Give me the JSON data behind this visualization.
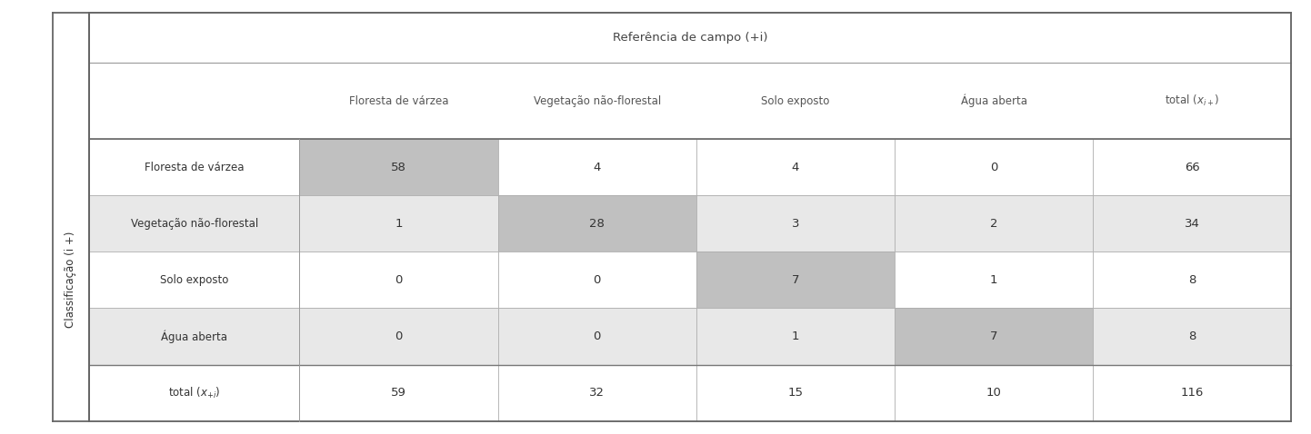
{
  "title": "Referência de campo (+i)",
  "row_label": "Classificação (i +)",
  "col_headers": [
    "",
    "Floresta de várzea",
    "Vegetação não-florestal",
    "Solo exposto",
    "Água aberta",
    "total (x_{i+})"
  ],
  "row_headers": [
    "Floresta de várzea",
    "Vegetação não-florestal",
    "Solo exposto",
    "Água aberta",
    "total (x_{+i})"
  ],
  "matrix": [
    [
      58,
      4,
      4,
      0,
      66
    ],
    [
      1,
      28,
      3,
      2,
      34
    ],
    [
      0,
      0,
      7,
      1,
      8
    ],
    [
      0,
      0,
      1,
      7,
      8
    ],
    [
      59,
      32,
      15,
      10,
      116
    ]
  ],
  "diagonal_color": "#c0c0c0",
  "alt_row_color": "#e8e8e8",
  "white_color": "#ffffff",
  "border_color": "#999999",
  "text_color": "#333333",
  "header_text_color": "#555555",
  "bg_color": "#ffffff",
  "total_row_color": "#ffffff"
}
